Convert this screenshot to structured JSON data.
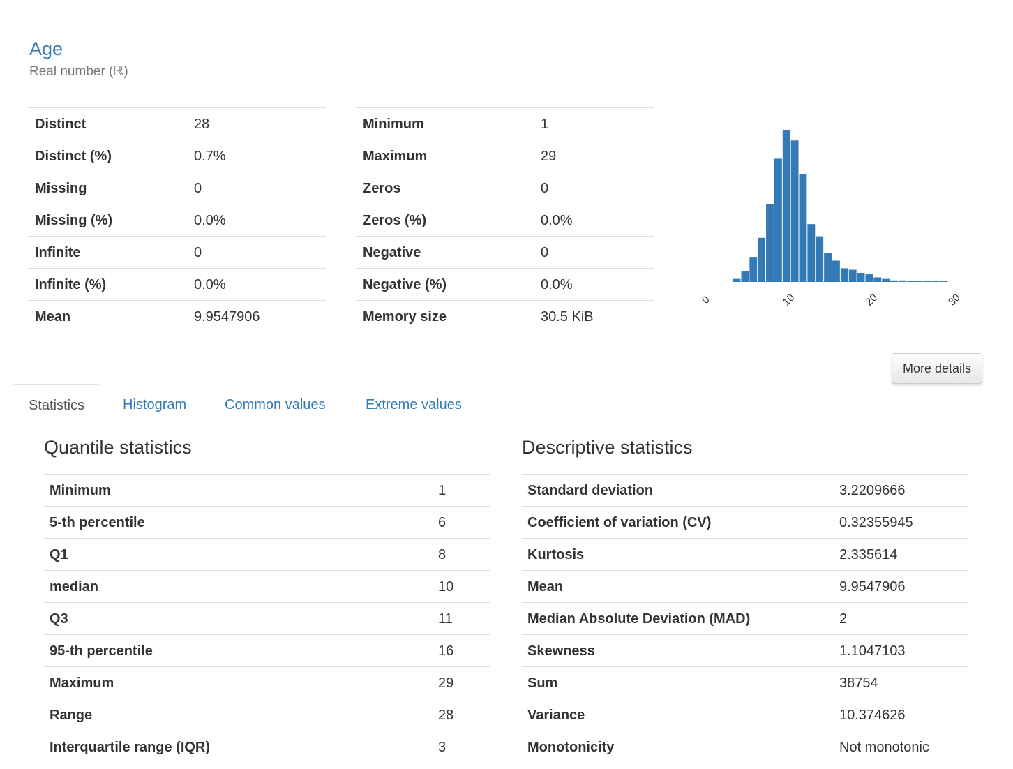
{
  "variable": {
    "name": "Age",
    "type_label": "Real number (ℝ)"
  },
  "overview_left": [
    {
      "label": "Distinct",
      "value": "28"
    },
    {
      "label": "Distinct (%)",
      "value": "0.7%"
    },
    {
      "label": "Missing",
      "value": "0"
    },
    {
      "label": "Missing (%)",
      "value": "0.0%"
    },
    {
      "label": "Infinite",
      "value": "0"
    },
    {
      "label": "Infinite (%)",
      "value": "0.0%"
    },
    {
      "label": "Mean",
      "value": "9.9547906"
    }
  ],
  "overview_right": [
    {
      "label": "Minimum",
      "value": "1"
    },
    {
      "label": "Maximum",
      "value": "29"
    },
    {
      "label": "Zeros",
      "value": "0"
    },
    {
      "label": "Zeros (%)",
      "value": "0.0%"
    },
    {
      "label": "Negative",
      "value": "0"
    },
    {
      "label": "Negative (%)",
      "value": "0.0%"
    },
    {
      "label": "Memory size",
      "value": "30.5 KiB"
    }
  ],
  "chart_data": {
    "type": "bar",
    "bar_color": "#337ab7",
    "xlim": [
      0,
      30
    ],
    "x_ticks": [
      0,
      10,
      20,
      30
    ],
    "bin_width": 1,
    "bins": [
      {
        "x": 3,
        "y": 0.02
      },
      {
        "x": 4,
        "y": 0.07
      },
      {
        "x": 5,
        "y": 0.16
      },
      {
        "x": 6,
        "y": 0.29
      },
      {
        "x": 7,
        "y": 0.51
      },
      {
        "x": 8,
        "y": 0.81
      },
      {
        "x": 9,
        "y": 1.0
      },
      {
        "x": 10,
        "y": 0.93
      },
      {
        "x": 11,
        "y": 0.71
      },
      {
        "x": 12,
        "y": 0.38
      },
      {
        "x": 13,
        "y": 0.3
      },
      {
        "x": 14,
        "y": 0.19
      },
      {
        "x": 15,
        "y": 0.14
      },
      {
        "x": 16,
        "y": 0.09
      },
      {
        "x": 17,
        "y": 0.08
      },
      {
        "x": 18,
        "y": 0.06
      },
      {
        "x": 19,
        "y": 0.05
      },
      {
        "x": 20,
        "y": 0.03
      },
      {
        "x": 21,
        "y": 0.02
      },
      {
        "x": 22,
        "y": 0.01
      },
      {
        "x": 23,
        "y": 0.01
      },
      {
        "x": 24,
        "y": 0.005
      },
      {
        "x": 25,
        "y": 0.005
      },
      {
        "x": 26,
        "y": 0.003
      },
      {
        "x": 27,
        "y": 0.003
      },
      {
        "x": 28,
        "y": 0.003
      }
    ]
  },
  "buttons": {
    "more_details": "More details"
  },
  "tabs": [
    {
      "label": "Statistics",
      "active": true
    },
    {
      "label": "Histogram",
      "active": false
    },
    {
      "label": "Common values",
      "active": false
    },
    {
      "label": "Extreme values",
      "active": false
    }
  ],
  "quantile": {
    "title": "Quantile statistics",
    "rows": [
      {
        "label": "Minimum",
        "value": "1"
      },
      {
        "label": "5-th percentile",
        "value": "6"
      },
      {
        "label": "Q1",
        "value": "8"
      },
      {
        "label": "median",
        "value": "10"
      },
      {
        "label": "Q3",
        "value": "11"
      },
      {
        "label": "95-th percentile",
        "value": "16"
      },
      {
        "label": "Maximum",
        "value": "29"
      },
      {
        "label": "Range",
        "value": "28"
      },
      {
        "label": "Interquartile range (IQR)",
        "value": "3"
      }
    ]
  },
  "descriptive": {
    "title": "Descriptive statistics",
    "rows": [
      {
        "label": "Standard deviation",
        "value": "3.2209666"
      },
      {
        "label": "Coefficient of variation (CV)",
        "value": "0.32355945"
      },
      {
        "label": "Kurtosis",
        "value": "2.335614"
      },
      {
        "label": "Mean",
        "value": "9.9547906"
      },
      {
        "label": "Median Absolute Deviation (MAD)",
        "value": "2"
      },
      {
        "label": "Skewness",
        "value": "1.1047103"
      },
      {
        "label": "Sum",
        "value": "38754"
      },
      {
        "label": "Variance",
        "value": "10.374626"
      },
      {
        "label": "Monotonicity",
        "value": "Not monotonic"
      }
    ]
  }
}
